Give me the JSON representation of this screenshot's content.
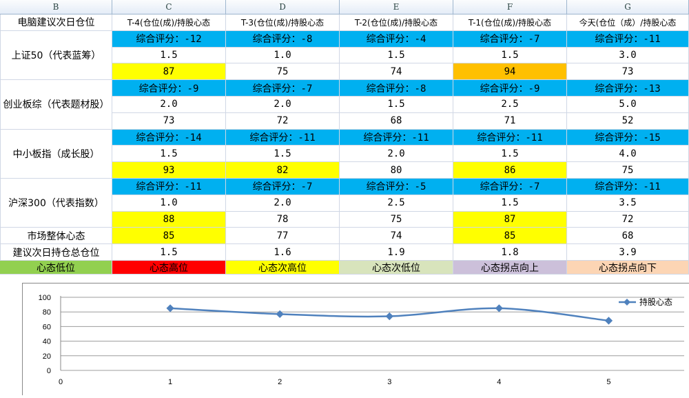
{
  "columns": [
    "B",
    "C",
    "D",
    "E",
    "F",
    "G"
  ],
  "header_row": {
    "label": "电脑建议次日仓位",
    "days": [
      "T-4(仓位(成)/持股心态",
      "T-3(仓位(成)/持股心态",
      "T-2(仓位(成)/持股心态",
      "T-1(仓位(成)/持股心态",
      "今天(仓位（成）/持股心态"
    ]
  },
  "groups": [
    {
      "label": "上证50（代表蓝筹）",
      "scores": [
        "综合评分：-12",
        "综合评分：-8",
        "综合评分：-4",
        "综合评分：-7",
        "综合评分：-11"
      ],
      "positions": [
        "1.5",
        "1.0",
        "1.5",
        "1.5",
        "3.0"
      ],
      "moods": [
        "87",
        "75",
        "74",
        "94",
        "73"
      ],
      "mood_colors": [
        "#ffff00",
        "#ffffff",
        "#ffffff",
        "#ffc000",
        "#ffffff"
      ]
    },
    {
      "label": "创业板综（代表题材股）",
      "scores": [
        "综合评分：-9",
        "综合评分：-7",
        "综合评分：-8",
        "综合评分：-9",
        "综合评分：-13"
      ],
      "positions": [
        "2.0",
        "2.0",
        "1.5",
        "2.5",
        "5.0"
      ],
      "moods": [
        "73",
        "72",
        "68",
        "71",
        "52"
      ],
      "mood_colors": [
        "#ffffff",
        "#ffffff",
        "#ffffff",
        "#ffffff",
        "#ffffff"
      ]
    },
    {
      "label": "中小板指（成长股）",
      "scores": [
        "综合评分：-14",
        "综合评分：-11",
        "综合评分：-11",
        "综合评分：-11",
        "综合评分：-15"
      ],
      "positions": [
        "1.5",
        "1.5",
        "2.0",
        "1.5",
        "4.0"
      ],
      "moods": [
        "93",
        "82",
        "80",
        "86",
        "75"
      ],
      "mood_colors": [
        "#ffff00",
        "#ffff00",
        "#ffffff",
        "#ffff00",
        "#ffffff"
      ]
    },
    {
      "label": "沪深300（代表指数）",
      "scores": [
        "综合评分：-11",
        "综合评分：-7",
        "综合评分：-5",
        "综合评分：-7",
        "综合评分：-11"
      ],
      "positions": [
        "1.0",
        "2.0",
        "2.5",
        "1.5",
        "3.5"
      ],
      "moods": [
        "88",
        "78",
        "75",
        "87",
        "72"
      ],
      "mood_colors": [
        "#ffff00",
        "#ffffff",
        "#ffffff",
        "#ffff00",
        "#ffffff"
      ]
    }
  ],
  "market_mood": {
    "label": "市场整体心态",
    "values": [
      "85",
      "77",
      "74",
      "85",
      "68"
    ],
    "colors": [
      "#ffff00",
      "#ffffff",
      "#ffffff",
      "#ffff00",
      "#ffffff"
    ]
  },
  "total_position": {
    "label": "建议次日持仓总仓位",
    "values": [
      "1.5",
      "1.6",
      "1.9",
      "1.8",
      "3.9"
    ]
  },
  "legend_row": [
    {
      "text": "心态低位",
      "color": "#92d050"
    },
    {
      "text": "心态高位",
      "color": "#ff0000"
    },
    {
      "text": "心态次高位",
      "color": "#ffff00"
    },
    {
      "text": "心态次低位",
      "color": "#d8e4bc"
    },
    {
      "text": "心态拐点向上",
      "color": "#ccc0da"
    },
    {
      "text": "心态拐点向下",
      "color": "#fcd5b4"
    }
  ],
  "chart_data": {
    "type": "line",
    "x": [
      1,
      2,
      3,
      4,
      5
    ],
    "series": [
      {
        "name": "持股心态",
        "values": [
          85,
          77,
          74,
          85,
          68
        ],
        "color": "#4f81bd"
      }
    ],
    "ylim": [
      0,
      100
    ],
    "yticks": [
      "0",
      "20",
      "40",
      "60",
      "80",
      "100"
    ],
    "xlim": [
      0,
      5.5
    ],
    "xticks": [
      "0",
      "1",
      "2",
      "3",
      "4",
      "5"
    ],
    "grid": true,
    "legend": "top-right"
  }
}
